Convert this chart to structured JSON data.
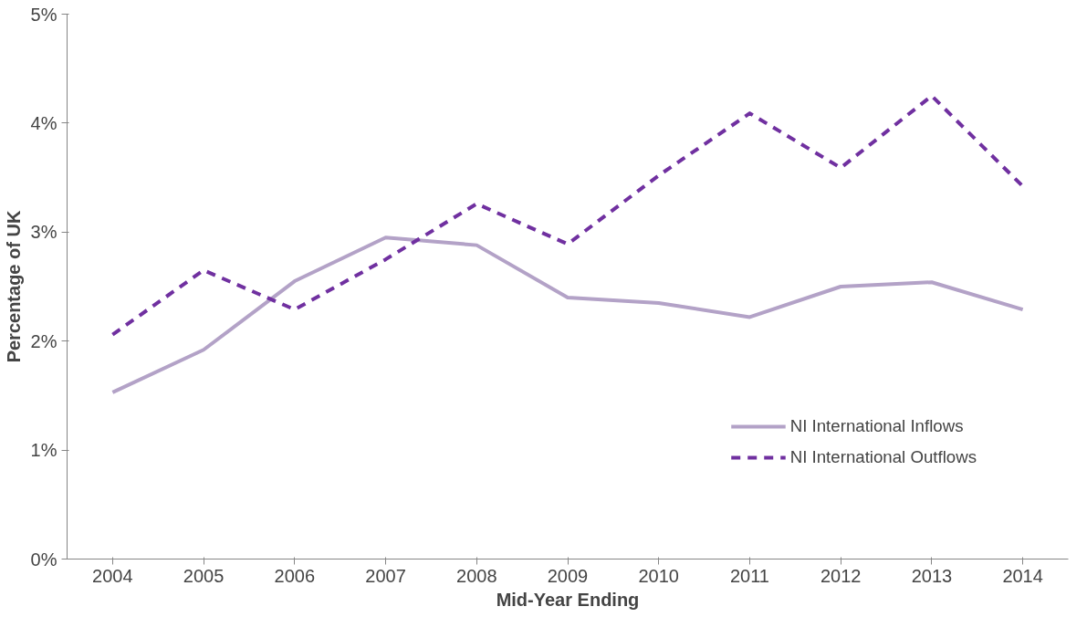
{
  "chart_data": {
    "type": "line",
    "xlabel": "Mid-Year Ending",
    "ylabel": "Percentage of UK",
    "categories": [
      "2004",
      "2005",
      "2006",
      "2007",
      "2008",
      "2009",
      "2010",
      "2011",
      "2012",
      "2013",
      "2014"
    ],
    "series": [
      {
        "name": "NI International Inflows",
        "color": "#b3a2c7",
        "line_style": "solid",
        "values": [
          1.53,
          1.92,
          2.55,
          2.95,
          2.88,
          2.4,
          2.35,
          2.22,
          2.5,
          2.54,
          2.29
        ]
      },
      {
        "name": "NI International Outflows",
        "color": "#7030a0",
        "line_style": "dashed",
        "values": [
          2.06,
          2.65,
          2.29,
          2.75,
          3.26,
          2.89,
          3.52,
          4.09,
          3.59,
          4.25,
          3.42
        ]
      }
    ],
    "ylim": [
      0,
      5
    ],
    "yticks": [
      {
        "value": 0,
        "label": "0%"
      },
      {
        "value": 1,
        "label": "1%"
      },
      {
        "value": 2,
        "label": "2%"
      },
      {
        "value": 3,
        "label": "3%"
      },
      {
        "value": 4,
        "label": "4%"
      },
      {
        "value": 5,
        "label": "5%"
      }
    ],
    "grid": false,
    "legend": "bottom right",
    "marker": "none"
  }
}
